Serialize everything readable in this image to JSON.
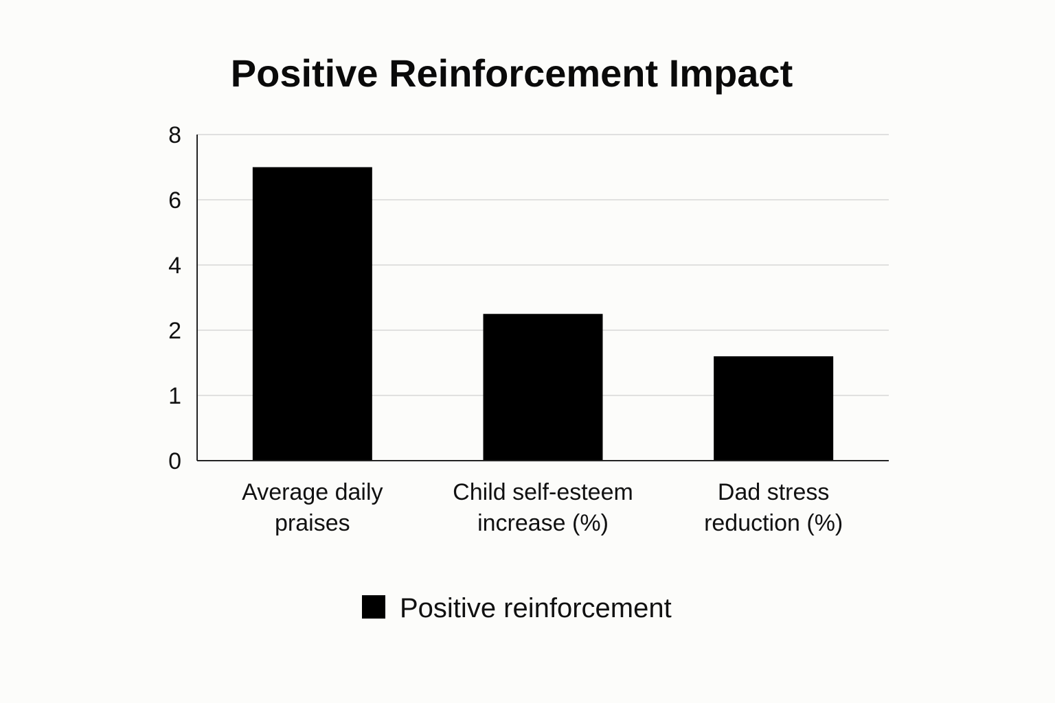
{
  "chart_data": {
    "type": "bar",
    "title": "Positive Reinforcement Impact",
    "categories": [
      [
        "Average daily",
        "praises"
      ],
      [
        "Child self-esteem",
        "increase (%)"
      ],
      [
        "Dad stress",
        "reduction (%)"
      ]
    ],
    "series": [
      {
        "name": "Positive reinforcement",
        "values": [
          7,
          2.5,
          1.6
        ],
        "color": "#000000"
      }
    ],
    "y_ticks": [
      {
        "value": 0,
        "label": "0"
      },
      {
        "value": 1,
        "label": "1"
      },
      {
        "value": 2,
        "label": "2"
      },
      {
        "value": 4,
        "label": "4"
      },
      {
        "value": 6,
        "label": "6"
      },
      {
        "value": 8,
        "label": "8"
      }
    ],
    "grid": true,
    "legend": "bottom-center"
  }
}
